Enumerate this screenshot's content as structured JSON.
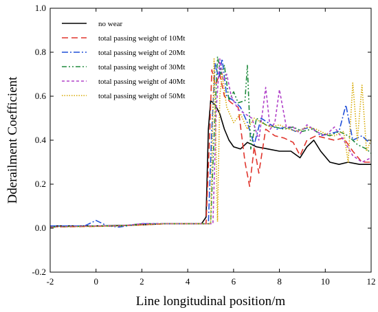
{
  "chart_data": {
    "type": "line",
    "title": "",
    "xlabel": "Line longitudinal position/m",
    "ylabel": "Dderailment Coefficient",
    "xlim": [
      -2,
      12
    ],
    "ylim": [
      -0.2,
      1.0
    ],
    "x_ticks": [
      "-2",
      "0",
      "2",
      "4",
      "6",
      "8",
      "10",
      "12"
    ],
    "y_ticks": [
      "-0.2",
      "0.0",
      "0.2",
      "0.4",
      "0.6",
      "0.8",
      "1.0"
    ],
    "grid": false,
    "legend_position": "top-left",
    "series": [
      {
        "name": "no wear",
        "color": "#000000",
        "dash": "solid",
        "x": [
          -2,
          0,
          1,
          2,
          3,
          4,
          4.6,
          4.8,
          4.9,
          5.0,
          5.2,
          5.4,
          5.6,
          5.8,
          6.0,
          6.3,
          6.6,
          7.0,
          7.5,
          8.0,
          8.5,
          8.9,
          9.2,
          9.5,
          9.8,
          10.2,
          10.6,
          11.0,
          11.5,
          12
        ],
        "y": [
          0.01,
          0.01,
          0.012,
          0.015,
          0.02,
          0.02,
          0.02,
          0.05,
          0.45,
          0.58,
          0.56,
          0.52,
          0.45,
          0.4,
          0.37,
          0.36,
          0.39,
          0.37,
          0.36,
          0.35,
          0.35,
          0.32,
          0.37,
          0.4,
          0.35,
          0.3,
          0.29,
          0.3,
          0.29,
          0.29
        ]
      },
      {
        "name": "total passing weight of 10Mt",
        "color": "#e0332b",
        "dash": "long-dash",
        "x": [
          -2,
          0,
          1,
          2,
          3,
          4,
          4.8,
          4.95,
          5.05,
          5.2,
          5.4,
          5.6,
          5.9,
          6.2,
          6.5,
          6.7,
          6.9,
          7.1,
          7.4,
          7.8,
          8.2,
          8.6,
          8.9,
          9.2,
          9.6,
          10.0,
          10.4,
          10.8,
          11.2,
          11.6,
          12
        ],
        "y": [
          0.005,
          0.008,
          0.01,
          0.015,
          0.02,
          0.02,
          0.02,
          0.4,
          0.72,
          0.65,
          0.7,
          0.6,
          0.57,
          0.55,
          0.3,
          0.19,
          0.37,
          0.25,
          0.45,
          0.42,
          0.41,
          0.39,
          0.33,
          0.4,
          0.42,
          0.41,
          0.4,
          0.41,
          0.35,
          0.3,
          0.3
        ]
      },
      {
        "name": "total passing weight of 20Mt",
        "color": "#1f4fd8",
        "dash": "dash-dot",
        "x": [
          -2,
          -0.5,
          0,
          0.5,
          1,
          2,
          3,
          4,
          4.9,
          5.05,
          5.2,
          5.35,
          5.5,
          5.7,
          6.0,
          6.3,
          6.6,
          6.9,
          7.2,
          7.5,
          7.9,
          8.3,
          8.7,
          9.0,
          9.4,
          9.8,
          10.2,
          10.6,
          10.9,
          11.2,
          11.6,
          12
        ],
        "y": [
          0.01,
          0.01,
          0.035,
          0.01,
          0.005,
          0.02,
          0.02,
          0.02,
          0.02,
          0.45,
          0.75,
          0.68,
          0.77,
          0.6,
          0.58,
          0.55,
          0.48,
          0.38,
          0.5,
          0.48,
          0.45,
          0.46,
          0.44,
          0.45,
          0.46,
          0.42,
          0.43,
          0.44,
          0.56,
          0.4,
          0.42,
          0.38
        ]
      },
      {
        "name": "total passing weight of 30Mt",
        "color": "#1e8a3c",
        "dash": "dash-dot-dot",
        "x": [
          -2,
          0,
          1,
          2,
          3,
          4,
          5.0,
          5.15,
          5.3,
          5.45,
          5.6,
          5.8,
          6.0,
          6.2,
          6.5,
          6.6,
          6.75,
          7.0,
          7.4,
          7.8,
          8.2,
          8.6,
          9.0,
          9.4,
          9.8,
          10.2,
          10.6,
          11.0,
          11.4,
          11.8,
          12
        ],
        "y": [
          0.005,
          0.01,
          0.01,
          0.02,
          0.02,
          0.02,
          0.02,
          0.42,
          0.78,
          0.7,
          0.74,
          0.58,
          0.62,
          0.57,
          0.58,
          0.74,
          0.36,
          0.5,
          0.47,
          0.46,
          0.45,
          0.46,
          0.44,
          0.45,
          0.43,
          0.42,
          0.44,
          0.42,
          0.38,
          0.36,
          0.34
        ]
      },
      {
        "name": "total passing weight of 40Mt",
        "color": "#b040c8",
        "dash": "short-dash",
        "x": [
          -2,
          0,
          1,
          2,
          3,
          4,
          5.1,
          5.25,
          5.4,
          5.55,
          5.7,
          5.9,
          6.2,
          6.5,
          6.8,
          7.1,
          7.4,
          7.6,
          7.8,
          8.0,
          8.3,
          8.6,
          8.9,
          9.2,
          9.6,
          10.0,
          10.4,
          10.8,
          11.2,
          11.6,
          12
        ],
        "y": [
          0.005,
          0.01,
          0.01,
          0.02,
          0.02,
          0.02,
          0.02,
          0.55,
          0.77,
          0.67,
          0.7,
          0.6,
          0.54,
          0.52,
          0.5,
          0.4,
          0.64,
          0.45,
          0.48,
          0.63,
          0.46,
          0.46,
          0.43,
          0.47,
          0.44,
          0.42,
          0.46,
          0.4,
          0.33,
          0.3,
          0.32
        ]
      },
      {
        "name": "total passing weight of 50Mt",
        "color": "#d6a800",
        "dash": "dotted",
        "x": [
          -2,
          0,
          1,
          2,
          3,
          4,
          4.8,
          5.0,
          5.15,
          5.3,
          5.4,
          5.5,
          5.7,
          6.0,
          6.3,
          6.6,
          6.9,
          7.2,
          7.6,
          8.0,
          8.4,
          8.8,
          9.2,
          9.6,
          10.0,
          10.4,
          10.8,
          11.0,
          11.2,
          11.4,
          11.6,
          11.8,
          12
        ],
        "y": [
          0.005,
          0.008,
          0.01,
          0.015,
          0.02,
          0.02,
          0.02,
          0.02,
          0.77,
          0.03,
          0.6,
          0.7,
          0.55,
          0.48,
          0.52,
          0.45,
          0.5,
          0.48,
          0.46,
          0.47,
          0.45,
          0.44,
          0.46,
          0.45,
          0.43,
          0.42,
          0.44,
          0.3,
          0.66,
          0.4,
          0.65,
          0.35,
          0.4
        ]
      }
    ]
  }
}
